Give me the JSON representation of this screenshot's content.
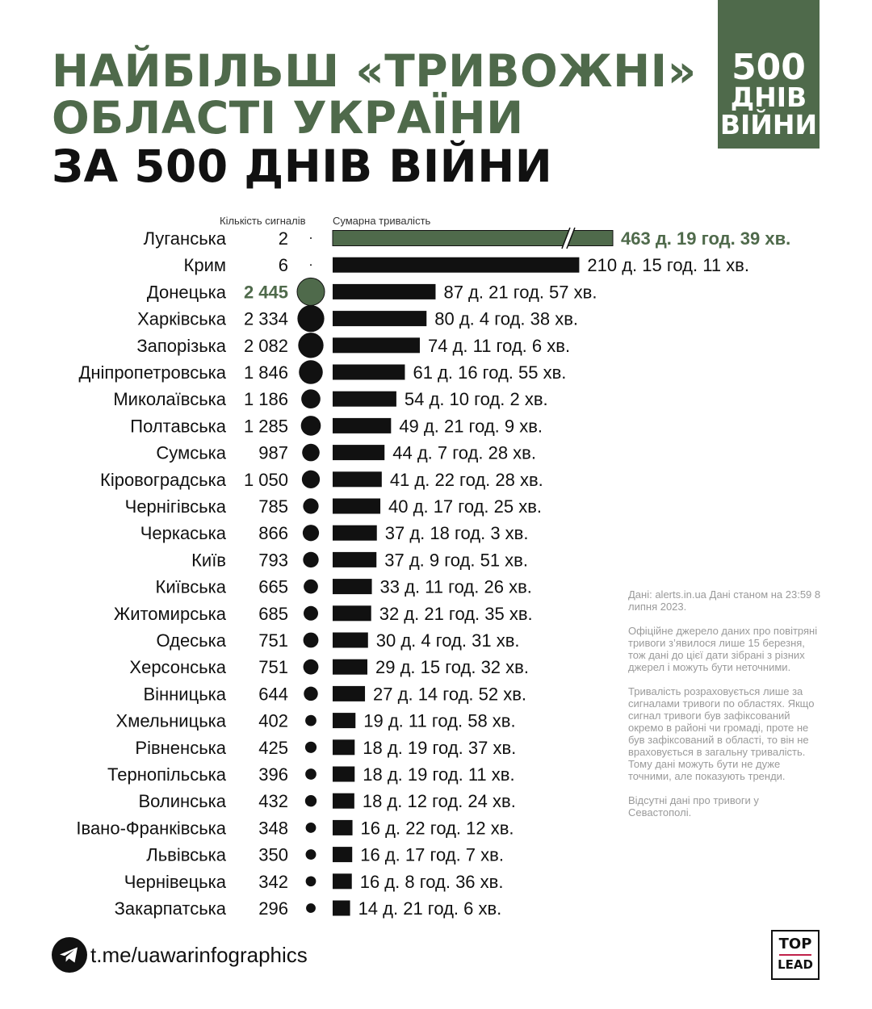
{
  "title": {
    "line1": "НАЙБІЛЬШ «ТРИВОЖНІ»",
    "line2": "ОБЛАСТІ УКРАЇНИ",
    "line3": "ЗА 500 ДНІВ ВІЙНИ"
  },
  "badge": {
    "line1": "500",
    "line2": "ДНІВ",
    "line3": "ВІЙНИ"
  },
  "colors": {
    "accent_green": "#4f6a4b",
    "bar": "#111111",
    "text": "#111111",
    "note_gray": "#9a9a9a",
    "logo_red": "#c0214a"
  },
  "chart_data": {
    "type": "bar",
    "orientation": "horizontal",
    "count_label": "Кількість сигналів",
    "duration_label": "Сумарна тривалість",
    "axis_break_on_first_bar": true,
    "highlight_color": "#4f6a4b",
    "rows": [
      {
        "region": "Луганська",
        "count": "2",
        "count_value": 2,
        "duration": "463 д. 19 год. 39 хв.",
        "duration_days": 463.82,
        "highlight_duration": true
      },
      {
        "region": "Крим",
        "count": "6",
        "count_value": 6,
        "duration": "210 д. 15 год. 11 хв.",
        "duration_days": 210.63
      },
      {
        "region": "Донецька",
        "count": "2 445",
        "count_value": 2445,
        "duration": "87 д. 21 год. 57 хв.",
        "duration_days": 87.91,
        "highlight_count": true
      },
      {
        "region": "Харківська",
        "count": "2 334",
        "count_value": 2334,
        "duration": "80 д. 4 год. 38 хв.",
        "duration_days": 80.19
      },
      {
        "region": "Запорізька",
        "count": "2 082",
        "count_value": 2082,
        "duration": "74 д. 11 год. 6 хв.",
        "duration_days": 74.46
      },
      {
        "region": "Дніпропетровська",
        "count": "1 846",
        "count_value": 1846,
        "duration": "61 д. 16 год. 55 хв.",
        "duration_days": 61.7
      },
      {
        "region": "Миколаївська",
        "count": "1 186",
        "count_value": 1186,
        "duration": "54 д. 10 год. 2 хв.",
        "duration_days": 54.42
      },
      {
        "region": "Полтавська",
        "count": "1 285",
        "count_value": 1285,
        "duration": "49 д. 21 год. 9 хв.",
        "duration_days": 49.88
      },
      {
        "region": "Сумська",
        "count": "987",
        "count_value": 987,
        "duration": "44 д. 7 год. 28 хв.",
        "duration_days": 44.31
      },
      {
        "region": "Кіровоградська",
        "count": "1 050",
        "count_value": 1050,
        "duration": "41 д. 22 год. 28 хв.",
        "duration_days": 41.94
      },
      {
        "region": "Чернігівська",
        "count": "785",
        "count_value": 785,
        "duration": "40 д. 17 год. 25 хв.",
        "duration_days": 40.73
      },
      {
        "region": "Черкаська",
        "count": "866",
        "count_value": 866,
        "duration": "37 д. 18 год. 3 хв.",
        "duration_days": 37.75
      },
      {
        "region": "Київ",
        "count": "793",
        "count_value": 793,
        "duration": "37 д. 9 год. 51 хв.",
        "duration_days": 37.41
      },
      {
        "region": "Київська",
        "count": "665",
        "count_value": 665,
        "duration": "33 д. 11 год. 26 хв.",
        "duration_days": 33.48
      },
      {
        "region": "Житомирська",
        "count": "685",
        "count_value": 685,
        "duration": "32 д. 21 год. 35 хв.",
        "duration_days": 32.9
      },
      {
        "region": "Одеська",
        "count": "751",
        "count_value": 751,
        "duration": "30 д. 4 год. 31 хв.",
        "duration_days": 30.19
      },
      {
        "region": "Херсонська",
        "count": "751",
        "count_value": 751,
        "duration": "29 д. 15 год. 32 хв.",
        "duration_days": 29.65
      },
      {
        "region": "Вінницька",
        "count": "644",
        "count_value": 644,
        "duration": "27 д. 14 год. 52 хв.",
        "duration_days": 27.62
      },
      {
        "region": "Хмельницька",
        "count": "402",
        "count_value": 402,
        "duration": "19 д. 11 год. 58 хв.",
        "duration_days": 19.5
      },
      {
        "region": "Рівненська",
        "count": "425",
        "count_value": 425,
        "duration": "18 д. 19 год. 37 хв.",
        "duration_days": 18.82
      },
      {
        "region": "Тернопільська",
        "count": "396",
        "count_value": 396,
        "duration": "18 д. 19 год. 11 хв.",
        "duration_days": 18.8
      },
      {
        "region": "Волинська",
        "count": "432",
        "count_value": 432,
        "duration": "18 д. 12 год. 24 хв.",
        "duration_days": 18.52
      },
      {
        "region": "Івано-Франківська",
        "count": "348",
        "count_value": 348,
        "duration": "16 д. 22 год. 12 хв.",
        "duration_days": 16.93
      },
      {
        "region": "Львівська",
        "count": "350",
        "count_value": 350,
        "duration": "16 д. 17 год. 7 хв.",
        "duration_days": 16.71
      },
      {
        "region": "Чернівецька",
        "count": "342",
        "count_value": 342,
        "duration": "16 д. 8 год. 36 хв.",
        "duration_days": 16.36
      },
      {
        "region": "Закарпатська",
        "count": "296",
        "count_value": 296,
        "duration": "14 д. 21 год. 6 хв.",
        "duration_days": 14.88
      }
    ]
  },
  "notes": [
    "Дані: alerts.in.ua Дані станом на 23:59 8 липня 2023.",
    "Офіційне джерело даних про повітряні тривоги з’явилося лише 15 березня, тож дані до цієї дати зібрані з різних джерел і можуть бути неточними.",
    "Тривалість розраховується лише за сигналами тривоги по областях. Якщо сигнал тривоги був зафіксований окремо в районі чи громаді, проте не був зафіксований в області, то він не враховується в загальну тривалість. Тому дані можуть бути не дуже точними, але показують тренди.",
    "Відсутні дані про тривоги у Севастополі."
  ],
  "footer": {
    "link_text": "t.me/uawarinfographics",
    "link_icon": "telegram-icon",
    "logo_top": "TOP",
    "logo_bottom": "LEAD"
  }
}
